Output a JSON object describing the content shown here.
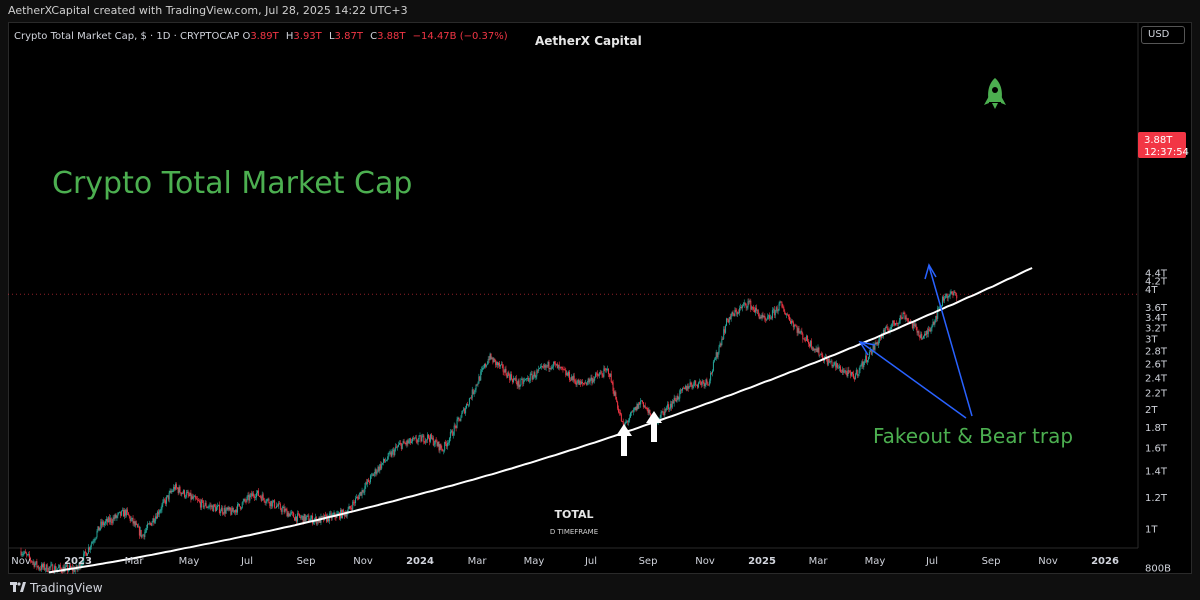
{
  "header": {
    "created_text": "AetherXCapital created with TradingView.com, Jul 28, 2025 14:22 UTC+3"
  },
  "legend": {
    "symbol": "Crypto Total Market Cap, $ · 1D · CRYPTOCAP",
    "open_label": "O",
    "open": "3.89T",
    "high_label": "H",
    "high": "3.93T",
    "low_label": "L",
    "low": "3.87T",
    "close_label": "C",
    "close": "3.88T",
    "change": "−14.47B (−0.37%)"
  },
  "watermark": {
    "brand": "AetherX Capital",
    "symbol": "TOTAL",
    "timeframe": "D TIMEFRAME"
  },
  "currency_button": "USD",
  "price_tag": {
    "value": "3.88T",
    "countdown": "12:37:54"
  },
  "footer": {
    "brand": "TradingView"
  },
  "colors": {
    "background": "#000000",
    "up_candle": "#26a69a",
    "down_candle": "#f23645",
    "title_green": "#4caf50",
    "rocket_green": "#4caf50",
    "arrow_blue": "#2962ff",
    "curve": "#ffffff",
    "axis_text": "#d1d4dc"
  },
  "icons": {
    "rocket": "rocket-icon",
    "up_arrows": "arrow-up-icon",
    "tv_logo": "tradingview-logo-icon"
  },
  "chart_data": {
    "type": "candlestick",
    "title": "Crypto Total Market Cap",
    "annotations": [
      "Fakeout & Bear trap"
    ],
    "y_unit": "USD",
    "y_ticks": [
      "800B",
      "1T",
      "1.2T",
      "1.4T",
      "1.6T",
      "1.8T",
      "2T",
      "2.2T",
      "2.4T",
      "2.6T",
      "2.8T",
      "3T",
      "3.2T",
      "3.4T",
      "3.6T",
      "4T",
      "4.2T",
      "4.4T"
    ],
    "y_tick_values": [
      0.8,
      1.0,
      1.2,
      1.4,
      1.6,
      1.8,
      2.0,
      2.2,
      2.4,
      2.6,
      2.8,
      3.0,
      3.2,
      3.4,
      3.6,
      4.0,
      4.2,
      4.4
    ],
    "x_ticks": [
      "Nov",
      "2023",
      "Mar",
      "May",
      "Jul",
      "Sep",
      "Nov",
      "2024",
      "Mar",
      "May",
      "Jul",
      "Sep",
      "Nov",
      "2025",
      "Mar",
      "May",
      "Jul",
      "Sep",
      "Nov",
      "2026"
    ],
    "x_tick_dates": [
      "2022-11-01",
      "2023-01-01",
      "2023-03-01",
      "2023-05-01",
      "2023-07-01",
      "2023-09-01",
      "2023-11-01",
      "2024-01-01",
      "2024-03-01",
      "2024-05-01",
      "2024-07-01",
      "2024-09-01",
      "2024-11-01",
      "2025-01-01",
      "2025-03-01",
      "2025-05-01",
      "2025-07-01",
      "2025-09-01",
      "2025-11-01",
      "2026-01-01"
    ],
    "x_bold_ticks": [
      "2023",
      "2024",
      "2025",
      "2026"
    ],
    "price_path": [
      [
        "2022-11-01",
        0.88
      ],
      [
        "2022-11-20",
        0.8
      ],
      [
        "2022-12-31",
        0.79
      ],
      [
        "2023-01-25",
        1.02
      ],
      [
        "2023-02-20",
        1.1
      ],
      [
        "2023-03-10",
        0.96
      ],
      [
        "2023-04-15",
        1.27
      ],
      [
        "2023-05-15",
        1.15
      ],
      [
        "2023-06-15",
        1.1
      ],
      [
        "2023-07-10",
        1.23
      ],
      [
        "2023-08-20",
        1.07
      ],
      [
        "2023-09-15",
        1.05
      ],
      [
        "2023-10-15",
        1.1
      ],
      [
        "2023-11-15",
        1.4
      ],
      [
        "2023-12-10",
        1.62
      ],
      [
        "2024-01-10",
        1.7
      ],
      [
        "2024-01-25",
        1.58
      ],
      [
        "2024-02-15",
        1.95
      ],
      [
        "2024-03-14",
        2.7
      ],
      [
        "2024-04-15",
        2.3
      ],
      [
        "2024-05-20",
        2.6
      ],
      [
        "2024-06-20",
        2.3
      ],
      [
        "2024-07-20",
        2.5
      ],
      [
        "2024-08-05",
        1.8
      ],
      [
        "2024-08-25",
        2.1
      ],
      [
        "2024-09-07",
        1.85
      ],
      [
        "2024-10-15",
        2.3
      ],
      [
        "2024-11-05",
        2.35
      ],
      [
        "2024-11-25",
        3.35
      ],
      [
        "2024-12-17",
        3.7
      ],
      [
        "2025-01-05",
        3.3
      ],
      [
        "2025-01-20",
        3.65
      ],
      [
        "2025-02-10",
        3.1
      ],
      [
        "2025-03-10",
        2.65
      ],
      [
        "2025-04-08",
        2.4
      ],
      [
        "2025-05-10",
        3.1
      ],
      [
        "2025-06-01",
        3.45
      ],
      [
        "2025-06-22",
        3.0
      ],
      [
        "2025-07-05",
        3.4
      ],
      [
        "2025-07-14",
        3.85
      ],
      [
        "2025-07-27",
        3.88
      ]
    ],
    "curve": {
      "style": "white trend curve",
      "points": [
        [
          "2022-12-01",
          0.78
        ],
        [
          "2023-09-01",
          1.02
        ],
        [
          "2024-08-05",
          1.78
        ],
        [
          "2025-07-01",
          3.36
        ],
        [
          "2025-10-15",
          4.6
        ]
      ]
    }
  }
}
